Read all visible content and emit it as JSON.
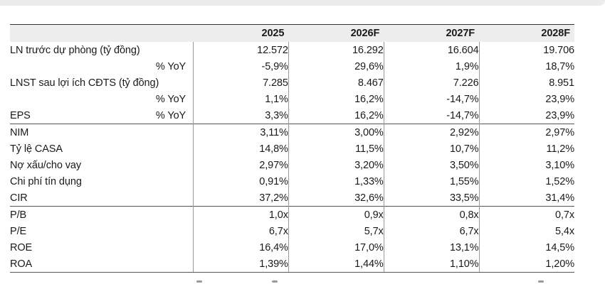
{
  "table": {
    "years": [
      "2025",
      "2026F",
      "2027F",
      "2028F"
    ],
    "rows": [
      {
        "label": "LN trước dự phòng (tỷ đồng)",
        "values": [
          "12.572",
          "16.292",
          "16.604",
          "19.706"
        ]
      },
      {
        "label": "% YoY",
        "values": [
          "-5,9%",
          "29,6%",
          "1,9%",
          "18,7%"
        ]
      },
      {
        "label": "LNST sau lợi ích CĐTS (tỷ đồng)",
        "values": [
          "7.285",
          "8.467",
          "7.226",
          "8.951"
        ]
      },
      {
        "label": "% YoY",
        "values": [
          "1,1%",
          "16,2%",
          "-14,7%",
          "23,9%"
        ]
      },
      {
        "label": "EPS",
        "sublabel": "% YoY",
        "values": [
          "3,3%",
          "16,2%",
          "-14,7%",
          "23,9%"
        ]
      },
      {
        "label": "NIM",
        "values": [
          "3,11%",
          "3,00%",
          "2,92%",
          "2,97%"
        ]
      },
      {
        "label": "Tỷ lệ CASA",
        "values": [
          "14,8%",
          "11,5%",
          "10,7%",
          "11,2%"
        ]
      },
      {
        "label": "Nợ xấu/cho vay",
        "values": [
          "2,97%",
          "3,20%",
          "3,50%",
          "3,10%"
        ]
      },
      {
        "label": "Chi phí tín dụng",
        "values": [
          "0,91%",
          "1,33%",
          "1,55%",
          "1,52%"
        ]
      },
      {
        "label": "CIR",
        "values": [
          "37,2%",
          "32,6%",
          "33,5%",
          "31,4%"
        ]
      },
      {
        "label": "P/B",
        "values": [
          "1,0x",
          "0,9x",
          "0,8x",
          "0,7x"
        ]
      },
      {
        "label": "P/E",
        "values": [
          "6,7x",
          "5,7x",
          "6,7x",
          "5,4x"
        ]
      },
      {
        "label": "ROE",
        "values": [
          "16,4%",
          "17,0%",
          "13,1%",
          "14,5%"
        ]
      },
      {
        "label": "ROA",
        "values": [
          "1,39%",
          "1,44%",
          "1,10%",
          "1,20%"
        ]
      }
    ]
  }
}
